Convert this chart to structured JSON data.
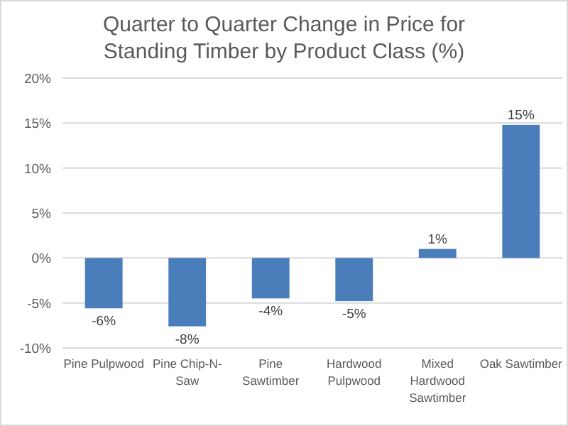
{
  "chart_data": {
    "type": "bar",
    "title": "Quarter to Quarter Change in Price for Standing Timber by Product Class (%)",
    "categories": [
      "Pine Pulpwood",
      "Pine Chip-N-Saw",
      "Pine Sawtimber",
      "Hardwood Pulpwood",
      "Mixed Hardwood Sawtimber",
      "Oak Sawtimber"
    ],
    "values": [
      -5.6,
      -7.6,
      -4.5,
      -4.8,
      1.0,
      14.8
    ],
    "value_labels": [
      "-6%",
      "-8%",
      "-4%",
      "-5%",
      "1%",
      "15%"
    ],
    "color": "#4a7ebb",
    "ylim": [
      -10,
      20
    ],
    "yticks": [
      {
        "value": -10,
        "label": "-10%"
      },
      {
        "value": -5,
        "label": "-5%"
      },
      {
        "value": 0,
        "label": "0%"
      },
      {
        "value": 5,
        "label": "5%"
      },
      {
        "value": 10,
        "label": "10%"
      },
      {
        "value": 15,
        "label": "15%"
      },
      {
        "value": 20,
        "label": "20%"
      }
    ],
    "grid": "y"
  }
}
